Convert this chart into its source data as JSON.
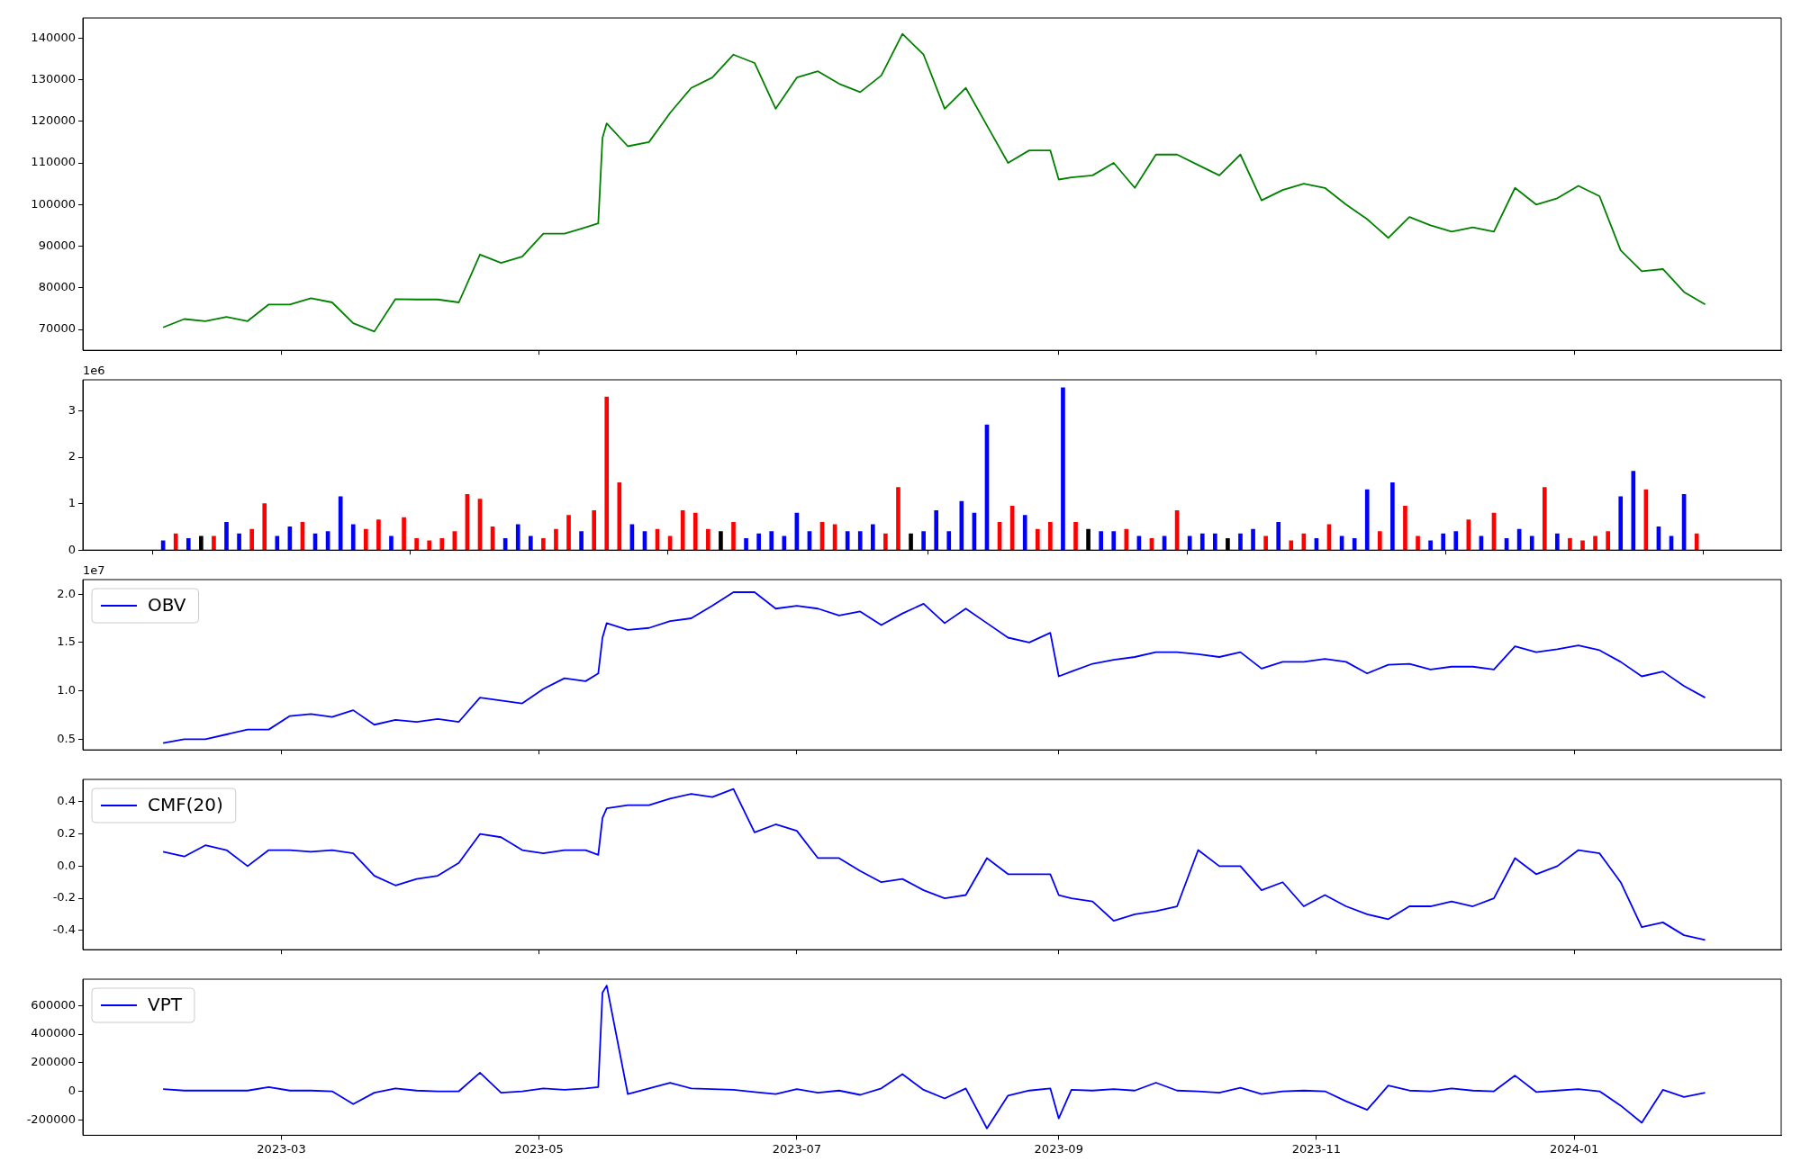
{
  "chart_data": [
    {
      "type": "line",
      "x": [
        "2023-02-01",
        "2023-02-06",
        "2023-02-11",
        "2023-02-16",
        "2023-02-21",
        "2023-02-26",
        "2023-03-03",
        "2023-03-08",
        "2023-03-13",
        "2023-03-18",
        "2023-03-23",
        "2023-03-28",
        "2023-04-02",
        "2023-04-07",
        "2023-04-12",
        "2023-04-17",
        "2023-04-22",
        "2023-04-27",
        "2023-05-02",
        "2023-05-07",
        "2023-05-12",
        "2023-05-15",
        "2023-05-16",
        "2023-05-17",
        "2023-05-22",
        "2023-05-27",
        "2023-06-01",
        "2023-06-06",
        "2023-06-11",
        "2023-06-16",
        "2023-06-21",
        "2023-06-26",
        "2023-07-01",
        "2023-07-06",
        "2023-07-11",
        "2023-07-16",
        "2023-07-21",
        "2023-07-26",
        "2023-07-31",
        "2023-08-05",
        "2023-08-10",
        "2023-08-15",
        "2023-08-20",
        "2023-08-25",
        "2023-08-30",
        "2023-09-01",
        "2023-09-04",
        "2023-09-09",
        "2023-09-14",
        "2023-09-19",
        "2023-09-24",
        "2023-09-29",
        "2023-10-04",
        "2023-10-09",
        "2023-10-14",
        "2023-10-19",
        "2023-10-24",
        "2023-10-29",
        "2023-11-03",
        "2023-11-08",
        "2023-11-13",
        "2023-11-18",
        "2023-11-23",
        "2023-11-28",
        "2023-12-03",
        "2023-12-08",
        "2023-12-13",
        "2023-12-18",
        "2023-12-23",
        "2023-12-28",
        "2024-01-02",
        "2024-01-07",
        "2024-01-12",
        "2024-01-17",
        "2024-01-22",
        "2024-01-27",
        "2024-02-01"
      ],
      "series": [
        {
          "color": "#008000",
          "values": [
            70500,
            72500,
            72000,
            73000,
            72000,
            76000,
            76000,
            77500,
            76500,
            71500,
            69500,
            77300,
            77200,
            77200,
            76500,
            88000,
            86000,
            87500,
            93000,
            93000,
            94500,
            95500,
            116000,
            119500,
            114000,
            115000,
            122000,
            128000,
            130500,
            136000,
            134000,
            123000,
            130500,
            132000,
            129000,
            127000,
            131000,
            141000,
            136000,
            123000,
            128000,
            119000,
            110000,
            113000,
            113000,
            106000,
            106500,
            107000,
            110000,
            104000,
            112000,
            112000,
            109500,
            107000,
            112000,
            101000,
            103500,
            105000,
            104000,
            100000,
            96500,
            92000,
            97000,
            95000,
            93500,
            94500,
            93500,
            104000,
            100000,
            101500,
            104500,
            102000,
            89000,
            84000,
            84500,
            79000,
            76000
          ]
        }
      ],
      "xlim": [
        "2023-01-13",
        "2024-02-19"
      ],
      "xticks": [
        "2023-03",
        "2023-05",
        "2023-07",
        "2023-09",
        "2023-11",
        "2024-01"
      ],
      "ylim": [
        65000,
        144800
      ],
      "yticks": [
        70000,
        80000,
        90000,
        100000,
        110000,
        120000,
        130000,
        140000
      ],
      "tick_labels": "y"
    },
    {
      "type": "bar",
      "annotations": [
        "1e6"
      ],
      "x": [
        "2023-02-01",
        "2023-02-04",
        "2023-02-07",
        "2023-02-10",
        "2023-02-13",
        "2023-02-16",
        "2023-02-19",
        "2023-02-22",
        "2023-02-25",
        "2023-02-28",
        "2023-03-03",
        "2023-03-06",
        "2023-03-09",
        "2023-03-12",
        "2023-03-15",
        "2023-03-18",
        "2023-03-21",
        "2023-03-24",
        "2023-03-27",
        "2023-03-30",
        "2023-04-02",
        "2023-04-05",
        "2023-04-08",
        "2023-04-11",
        "2023-04-14",
        "2023-04-17",
        "2023-04-20",
        "2023-04-23",
        "2023-04-26",
        "2023-04-29",
        "2023-05-02",
        "2023-05-05",
        "2023-05-08",
        "2023-05-11",
        "2023-05-14",
        "2023-05-17",
        "2023-05-20",
        "2023-05-23",
        "2023-05-26",
        "2023-05-29",
        "2023-06-01",
        "2023-06-04",
        "2023-06-07",
        "2023-06-10",
        "2023-06-13",
        "2023-06-16",
        "2023-06-19",
        "2023-06-22",
        "2023-06-25",
        "2023-06-28",
        "2023-07-01",
        "2023-07-04",
        "2023-07-07",
        "2023-07-10",
        "2023-07-13",
        "2023-07-16",
        "2023-07-19",
        "2023-07-22",
        "2023-07-25",
        "2023-07-28",
        "2023-07-31",
        "2023-08-03",
        "2023-08-06",
        "2023-08-09",
        "2023-08-12",
        "2023-08-15",
        "2023-08-18",
        "2023-08-21",
        "2023-08-24",
        "2023-08-27",
        "2023-08-30",
        "2023-09-02",
        "2023-09-05",
        "2023-09-08",
        "2023-09-11",
        "2023-09-14",
        "2023-09-17",
        "2023-09-20",
        "2023-09-23",
        "2023-09-26",
        "2023-09-29",
        "2023-10-02",
        "2023-10-05",
        "2023-10-08",
        "2023-10-11",
        "2023-10-14",
        "2023-10-17",
        "2023-10-20",
        "2023-10-23",
        "2023-10-26",
        "2023-10-29",
        "2023-11-01",
        "2023-11-04",
        "2023-11-07",
        "2023-11-10",
        "2023-11-13",
        "2023-11-16",
        "2023-11-19",
        "2023-11-22",
        "2023-11-25",
        "2023-11-28",
        "2023-12-01",
        "2023-12-04",
        "2023-12-07",
        "2023-12-10",
        "2023-12-13",
        "2023-12-16",
        "2023-12-19",
        "2023-12-22",
        "2023-12-25",
        "2023-12-28",
        "2023-12-31",
        "2024-01-03",
        "2024-01-06",
        "2024-01-09",
        "2024-01-12",
        "2024-01-15",
        "2024-01-18",
        "2024-01-21",
        "2024-01-24",
        "2024-01-27",
        "2024-01-30"
      ],
      "series": [
        {
          "values": [
            0.2,
            0.35,
            0.25,
            0.3,
            0.3,
            0.6,
            0.35,
            0.45,
            1.0,
            0.3,
            0.5,
            0.6,
            0.35,
            0.4,
            1.15,
            0.55,
            0.45,
            0.65,
            0.3,
            0.7,
            0.25,
            0.2,
            0.25,
            0.4,
            1.2,
            1.1,
            0.5,
            0.25,
            0.55,
            0.3,
            0.25,
            0.45,
            0.75,
            0.4,
            0.85,
            3.3,
            1.45,
            0.55,
            0.4,
            0.45,
            0.3,
            0.85,
            0.8,
            0.45,
            0.4,
            0.6,
            0.25,
            0.35,
            0.4,
            0.3,
            0.8,
            0.4,
            0.6,
            0.55,
            0.4,
            0.4,
            0.55,
            0.35,
            1.35,
            0.35,
            0.4,
            0.85,
            0.4,
            1.05,
            0.8,
            2.7,
            0.6,
            0.95,
            0.75,
            0.45,
            0.6,
            3.5,
            0.6,
            0.45,
            0.4,
            0.4,
            0.45,
            0.3,
            0.25,
            0.3,
            0.85,
            0.3,
            0.35,
            0.35,
            0.25,
            0.35,
            0.45,
            0.3,
            0.6,
            0.2,
            0.35,
            0.25,
            0.55,
            0.3,
            0.25,
            1.3,
            0.4,
            1.45,
            0.95,
            0.3,
            0.2,
            0.35,
            0.4,
            0.65,
            0.3,
            0.8,
            0.25,
            0.45,
            0.3,
            1.35,
            0.35,
            0.25,
            0.2,
            0.3,
            0.4,
            1.15,
            1.7,
            1.3,
            0.5,
            0.3,
            1.2,
            0.35
          ],
          "colors": [
            "#0000ff",
            "#ff0000",
            "#0000ff",
            "#000000",
            "#ff0000",
            "#0000ff",
            "#0000ff",
            "#ff0000",
            "#ff0000",
            "#0000ff",
            "#0000ff",
            "#ff0000",
            "#0000ff",
            "#0000ff",
            "#0000ff",
            "#0000ff",
            "#ff0000",
            "#ff0000",
            "#0000ff",
            "#ff0000",
            "#ff0000",
            "#ff0000",
            "#ff0000",
            "#ff0000",
            "#ff0000",
            "#ff0000",
            "#ff0000",
            "#0000ff",
            "#0000ff",
            "#0000ff",
            "#ff0000",
            "#ff0000",
            "#ff0000",
            "#0000ff",
            "#ff0000",
            "#ff0000",
            "#ff0000",
            "#0000ff",
            "#0000ff",
            "#ff0000",
            "#ff0000",
            "#ff0000",
            "#ff0000",
            "#ff0000",
            "#000000",
            "#ff0000",
            "#0000ff",
            "#0000ff",
            "#0000ff",
            "#0000ff",
            "#0000ff",
            "#0000ff",
            "#ff0000",
            "#ff0000",
            "#0000ff",
            "#0000ff",
            "#0000ff",
            "#ff0000",
            "#ff0000",
            "#000000",
            "#0000ff",
            "#0000ff",
            "#0000ff",
            "#0000ff",
            "#0000ff",
            "#0000ff",
            "#ff0000",
            "#ff0000",
            "#0000ff",
            "#ff0000",
            "#ff0000",
            "#0000ff",
            "#ff0000",
            "#000000",
            "#0000ff",
            "#0000ff",
            "#ff0000",
            "#0000ff",
            "#ff0000",
            "#0000ff",
            "#ff0000",
            "#0000ff",
            "#0000ff",
            "#0000ff",
            "#000000",
            "#0000ff",
            "#0000ff",
            "#ff0000",
            "#0000ff",
            "#ff0000",
            "#ff0000",
            "#0000ff",
            "#ff0000",
            "#0000ff",
            "#0000ff",
            "#0000ff",
            "#ff0000",
            "#0000ff",
            "#ff0000",
            "#ff0000",
            "#0000ff",
            "#0000ff",
            "#0000ff",
            "#ff0000",
            "#0000ff",
            "#ff0000",
            "#0000ff",
            "#0000ff",
            "#0000ff",
            "#ff0000",
            "#0000ff",
            "#ff0000",
            "#ff0000",
            "#ff0000",
            "#ff0000",
            "#0000ff",
            "#0000ff",
            "#ff0000",
            "#0000ff",
            "#0000ff",
            "#0000ff",
            "#ff0000"
          ]
        }
      ],
      "xlim": [
        "2023-01-13",
        "2024-02-19"
      ],
      "xticks": [
        "2023-03",
        "2023-05",
        "2023-07",
        "2023-09",
        "2023-11",
        "2024-01"
      ],
      "ylim": [
        0,
        3.67
      ],
      "yticks": [
        0,
        1,
        2,
        3
      ],
      "tick_labels": "y"
    },
    {
      "type": "line",
      "annotations": [
        "1e7"
      ],
      "legend": "top left",
      "x": [
        "2023-02-01",
        "2023-02-06",
        "2023-02-11",
        "2023-02-16",
        "2023-02-21",
        "2023-02-26",
        "2023-03-03",
        "2023-03-08",
        "2023-03-13",
        "2023-03-18",
        "2023-03-23",
        "2023-03-28",
        "2023-04-02",
        "2023-04-07",
        "2023-04-12",
        "2023-04-17",
        "2023-04-22",
        "2023-04-27",
        "2023-05-02",
        "2023-05-07",
        "2023-05-12",
        "2023-05-15",
        "2023-05-16",
        "2023-05-17",
        "2023-05-22",
        "2023-05-27",
        "2023-06-01",
        "2023-06-06",
        "2023-06-11",
        "2023-06-16",
        "2023-06-21",
        "2023-06-26",
        "2023-07-01",
        "2023-07-06",
        "2023-07-11",
        "2023-07-16",
        "2023-07-21",
        "2023-07-26",
        "2023-07-31",
        "2023-08-05",
        "2023-08-10",
        "2023-08-15",
        "2023-08-20",
        "2023-08-25",
        "2023-08-30",
        "2023-09-01",
        "2023-09-04",
        "2023-09-09",
        "2023-09-14",
        "2023-09-19",
        "2023-09-24",
        "2023-09-29",
        "2023-10-04",
        "2023-10-09",
        "2023-10-14",
        "2023-10-19",
        "2023-10-24",
        "2023-10-29",
        "2023-11-03",
        "2023-11-08",
        "2023-11-13",
        "2023-11-18",
        "2023-11-23",
        "2023-11-28",
        "2023-12-03",
        "2023-12-08",
        "2023-12-13",
        "2023-12-18",
        "2023-12-23",
        "2023-12-28",
        "2024-01-02",
        "2024-01-07",
        "2024-01-12",
        "2024-01-17",
        "2024-01-22",
        "2024-01-27",
        "2024-02-01"
      ],
      "series": [
        {
          "name": "OBV",
          "color": "#0000ff",
          "values": [
            0.46,
            0.5,
            0.5,
            0.55,
            0.6,
            0.6,
            0.74,
            0.76,
            0.73,
            0.8,
            0.65,
            0.7,
            0.68,
            0.71,
            0.68,
            0.93,
            0.9,
            0.87,
            1.02,
            1.13,
            1.1,
            1.18,
            1.55,
            1.7,
            1.63,
            1.65,
            1.72,
            1.75,
            1.88,
            2.02,
            2.02,
            1.85,
            1.88,
            1.85,
            1.78,
            1.82,
            1.68,
            1.8,
            1.9,
            1.7,
            1.85,
            1.7,
            1.55,
            1.5,
            1.6,
            1.15,
            1.2,
            1.28,
            1.32,
            1.35,
            1.4,
            1.4,
            1.38,
            1.35,
            1.4,
            1.23,
            1.3,
            1.3,
            1.33,
            1.3,
            1.18,
            1.27,
            1.28,
            1.22,
            1.25,
            1.25,
            1.22,
            1.46,
            1.4,
            1.43,
            1.47,
            1.42,
            1.3,
            1.15,
            1.2,
            1.05,
            0.93
          ]
        }
      ],
      "xlim": [
        "2023-01-13",
        "2024-02-19"
      ],
      "xticks": [
        "2023-03",
        "2023-05",
        "2023-07",
        "2023-09",
        "2023-11",
        "2024-01"
      ],
      "ylim": [
        0.39,
        2.15
      ],
      "yticks": [
        0.5,
        {
          "value": 1,
          "label": "1.0"
        },
        1.5,
        {
          "value": 2,
          "label": "2.0"
        }
      ],
      "tick_labels": "y"
    },
    {
      "type": "line",
      "legend": "top left",
      "x": [
        "2023-02-01",
        "2023-02-06",
        "2023-02-11",
        "2023-02-16",
        "2023-02-21",
        "2023-02-26",
        "2023-03-03",
        "2023-03-08",
        "2023-03-13",
        "2023-03-18",
        "2023-03-23",
        "2023-03-28",
        "2023-04-02",
        "2023-04-07",
        "2023-04-12",
        "2023-04-17",
        "2023-04-22",
        "2023-04-27",
        "2023-05-02",
        "2023-05-07",
        "2023-05-12",
        "2023-05-15",
        "2023-05-16",
        "2023-05-17",
        "2023-05-22",
        "2023-05-27",
        "2023-06-01",
        "2023-06-06",
        "2023-06-11",
        "2023-06-16",
        "2023-06-21",
        "2023-06-26",
        "2023-07-01",
        "2023-07-06",
        "2023-07-11",
        "2023-07-16",
        "2023-07-21",
        "2023-07-26",
        "2023-07-31",
        "2023-08-05",
        "2023-08-10",
        "2023-08-15",
        "2023-08-20",
        "2023-08-25",
        "2023-08-30",
        "2023-09-01",
        "2023-09-04",
        "2023-09-09",
        "2023-09-14",
        "2023-09-19",
        "2023-09-24",
        "2023-09-29",
        "2023-10-04",
        "2023-10-09",
        "2023-10-14",
        "2023-10-19",
        "2023-10-24",
        "2023-10-29",
        "2023-11-03",
        "2023-11-08",
        "2023-11-13",
        "2023-11-18",
        "2023-11-23",
        "2023-11-28",
        "2023-12-03",
        "2023-12-08",
        "2023-12-13",
        "2023-12-18",
        "2023-12-23",
        "2023-12-28",
        "2024-01-02",
        "2024-01-07",
        "2024-01-12",
        "2024-01-17",
        "2024-01-22",
        "2024-01-27",
        "2024-02-01"
      ],
      "series": [
        {
          "name": "CMF(20)",
          "color": "#0000ff",
          "values": [
            0.09,
            0.06,
            0.13,
            0.1,
            0.0,
            0.1,
            0.1,
            0.09,
            0.1,
            0.08,
            -0.06,
            -0.12,
            -0.08,
            -0.06,
            0.02,
            0.2,
            0.18,
            0.1,
            0.08,
            0.1,
            0.1,
            0.07,
            0.3,
            0.36,
            0.38,
            0.38,
            0.42,
            0.45,
            0.43,
            0.48,
            0.21,
            0.26,
            0.22,
            0.05,
            0.05,
            -0.03,
            -0.1,
            -0.08,
            -0.15,
            -0.2,
            -0.18,
            0.05,
            -0.05,
            -0.05,
            -0.05,
            -0.18,
            -0.2,
            -0.22,
            -0.34,
            -0.3,
            -0.28,
            -0.25,
            0.1,
            0.0,
            0.0,
            -0.15,
            -0.1,
            -0.25,
            -0.18,
            -0.25,
            -0.3,
            -0.33,
            -0.25,
            -0.25,
            -0.22,
            -0.25,
            -0.2,
            0.05,
            -0.05,
            0.0,
            0.1,
            0.08,
            -0.1,
            -0.38,
            -0.35,
            -0.43,
            -0.46
          ]
        }
      ],
      "xlim": [
        "2023-01-13",
        "2024-02-19"
      ],
      "xticks": [
        "2023-03",
        "2023-05",
        "2023-07",
        "2023-09",
        "2023-11",
        "2024-01"
      ],
      "ylim": [
        -0.52,
        0.54
      ],
      "yticks": [
        -0.4,
        -0.2,
        {
          "value": 0,
          "label": "0.0"
        },
        0.2,
        0.4
      ],
      "tick_labels": "y"
    },
    {
      "type": "line",
      "legend": "top left",
      "x": [
        "2023-02-01",
        "2023-02-06",
        "2023-02-11",
        "2023-02-16",
        "2023-02-21",
        "2023-02-26",
        "2023-03-03",
        "2023-03-08",
        "2023-03-13",
        "2023-03-18",
        "2023-03-23",
        "2023-03-28",
        "2023-04-02",
        "2023-04-07",
        "2023-04-12",
        "2023-04-17",
        "2023-04-22",
        "2023-04-27",
        "2023-05-02",
        "2023-05-07",
        "2023-05-12",
        "2023-05-15",
        "2023-05-16",
        "2023-05-17",
        "2023-05-22",
        "2023-05-27",
        "2023-06-01",
        "2023-06-06",
        "2023-06-11",
        "2023-06-16",
        "2023-06-21",
        "2023-06-26",
        "2023-07-01",
        "2023-07-06",
        "2023-07-11",
        "2023-07-16",
        "2023-07-21",
        "2023-07-26",
        "2023-07-31",
        "2023-08-05",
        "2023-08-10",
        "2023-08-15",
        "2023-08-20",
        "2023-08-25",
        "2023-08-30",
        "2023-09-01",
        "2023-09-04",
        "2023-09-09",
        "2023-09-14",
        "2023-09-19",
        "2023-09-24",
        "2023-09-29",
        "2023-10-04",
        "2023-10-09",
        "2023-10-14",
        "2023-10-19",
        "2023-10-24",
        "2023-10-29",
        "2023-11-03",
        "2023-11-08",
        "2023-11-13",
        "2023-11-18",
        "2023-11-23",
        "2023-11-28",
        "2023-12-03",
        "2023-12-08",
        "2023-12-13",
        "2023-12-18",
        "2023-12-23",
        "2023-12-28",
        "2024-01-02",
        "2024-01-07",
        "2024-01-12",
        "2024-01-17",
        "2024-01-22",
        "2024-01-27",
        "2024-02-01"
      ],
      "series": [
        {
          "name": "VPT",
          "color": "#0000ff",
          "values": [
            15000,
            5000,
            5000,
            5000,
            5000,
            30000,
            5000,
            5000,
            0,
            -90000,
            -10000,
            20000,
            5000,
            0,
            0,
            130000,
            -10000,
            0,
            20000,
            10000,
            20000,
            30000,
            690000,
            740000,
            -20000,
            20000,
            60000,
            20000,
            15000,
            10000,
            -5000,
            -20000,
            15000,
            -10000,
            5000,
            -25000,
            20000,
            120000,
            10000,
            -50000,
            20000,
            -260000,
            -30000,
            5000,
            20000,
            -190000,
            10000,
            5000,
            15000,
            5000,
            60000,
            5000,
            0,
            -10000,
            25000,
            -20000,
            0,
            5000,
            0,
            -70000,
            -130000,
            40000,
            5000,
            0,
            20000,
            5000,
            0,
            110000,
            -5000,
            5000,
            15000,
            0,
            -100000,
            -220000,
            10000,
            -40000,
            -10000
          ]
        }
      ],
      "xlim": [
        "2023-01-13",
        "2024-02-19"
      ],
      "xticks": [
        "2023-03",
        "2023-05",
        "2023-07",
        "2023-09",
        "2023-11",
        "2024-01"
      ],
      "ylim": [
        -308000,
        785000
      ],
      "yticks": [
        -200000,
        0,
        200000,
        400000,
        600000
      ]
    }
  ]
}
